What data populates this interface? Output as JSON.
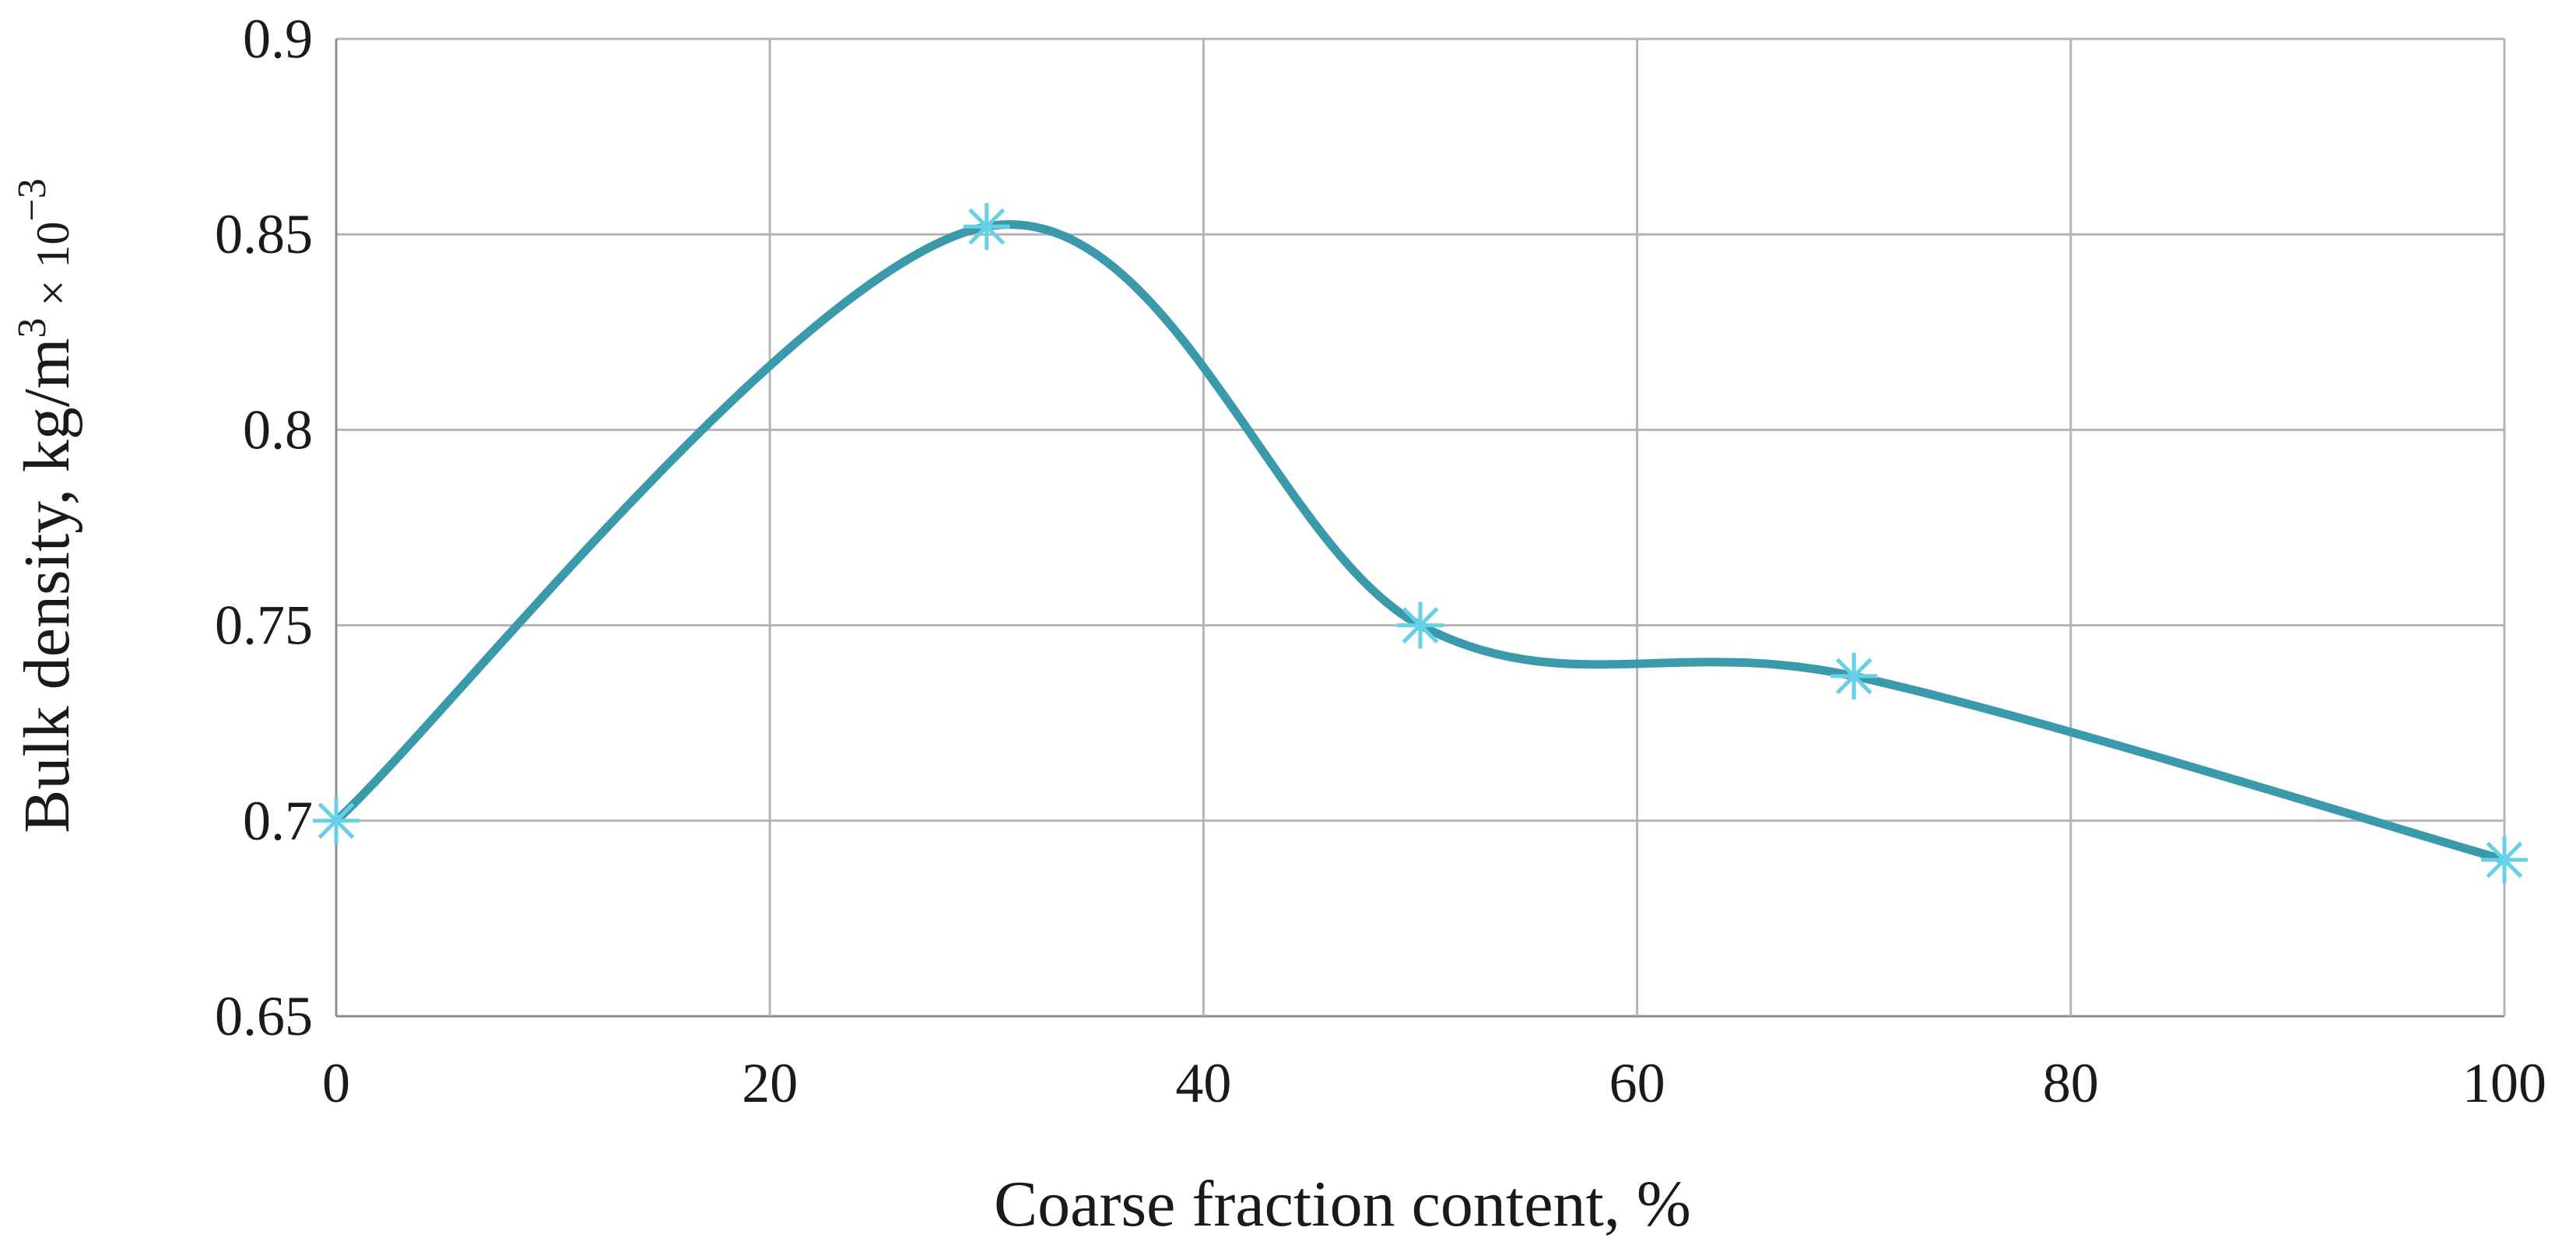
{
  "chart_data": {
    "type": "line",
    "title": "",
    "xlabel": "Coarse fraction content, %",
    "ylabel": {
      "main": "Bulk density, kg/m",
      "exp1": "3",
      "mid": " × 10",
      "exp2": "−3"
    },
    "xlim": [
      0,
      100
    ],
    "ylim": [
      0.65,
      0.9
    ],
    "x_ticks": [
      "0",
      "20",
      "40",
      "60",
      "80",
      "100"
    ],
    "x_tick_values": [
      0,
      20,
      40,
      60,
      80,
      100
    ],
    "y_ticks": [
      "0.65",
      "0.7",
      "0.75",
      "0.8",
      "0.85",
      "0.9"
    ],
    "y_tick_values": [
      0.65,
      0.7,
      0.75,
      0.8,
      0.85,
      0.9
    ],
    "grid": true,
    "smooth": true,
    "marker": "asterisk",
    "series": [
      {
        "x": [
          0,
          30,
          50,
          70,
          100
        ],
        "y": [
          0.7,
          0.852,
          0.75,
          0.737,
          0.69
        ]
      }
    ],
    "colors": {
      "line": "#3a9aac",
      "marker": "#66d0e6",
      "grid": "#b4b4b4"
    }
  }
}
